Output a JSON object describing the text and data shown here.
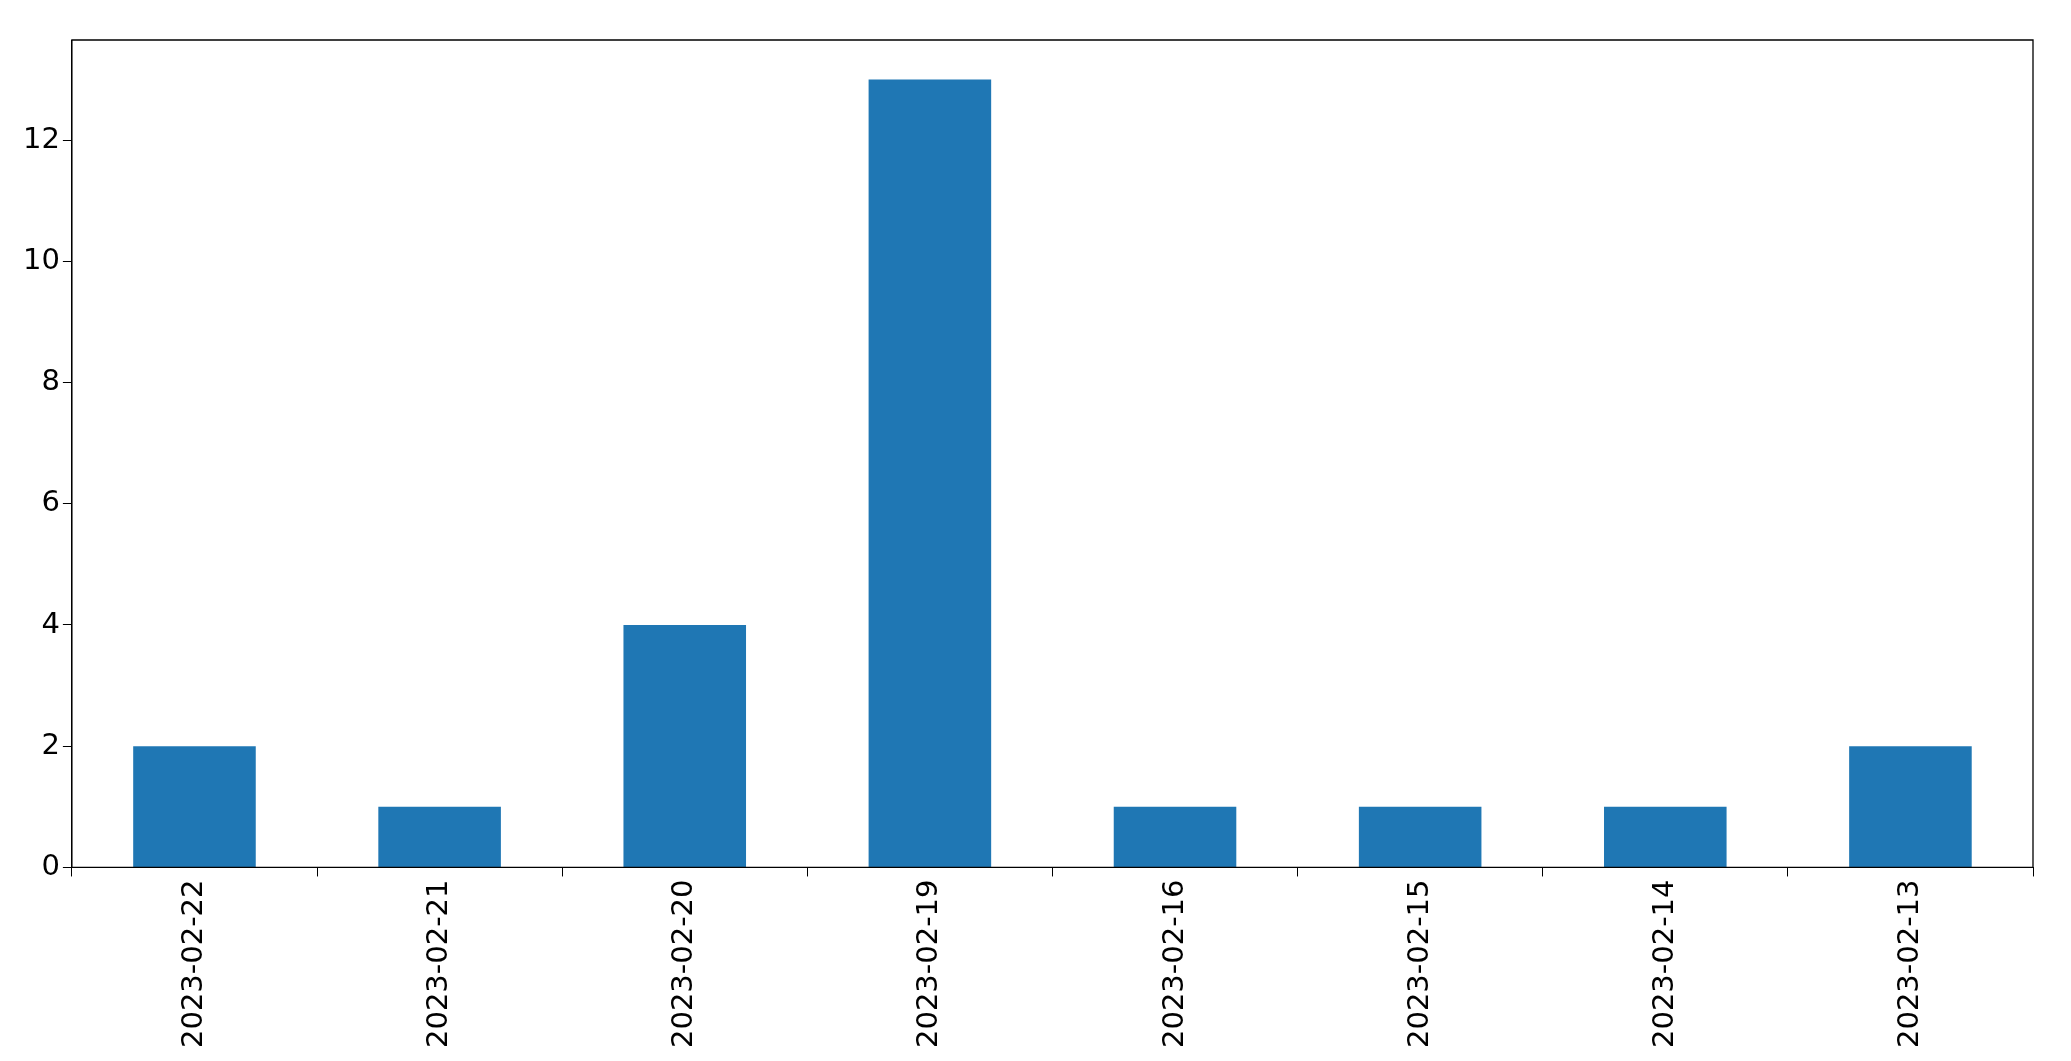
{
  "chart_data": {
    "type": "bar",
    "categories": [
      "2023-02-22",
      "2023-02-21",
      "2023-02-20",
      "2023-02-19",
      "2023-02-16",
      "2023-02-15",
      "2023-02-14",
      "2023-02-13"
    ],
    "values": [
      2,
      1,
      4,
      13,
      1,
      1,
      1,
      2
    ],
    "color": "#1f77b4",
    "ylim": [
      0,
      13.65
    ],
    "yticks": [
      0,
      2,
      4,
      6,
      8,
      10,
      12
    ]
  }
}
